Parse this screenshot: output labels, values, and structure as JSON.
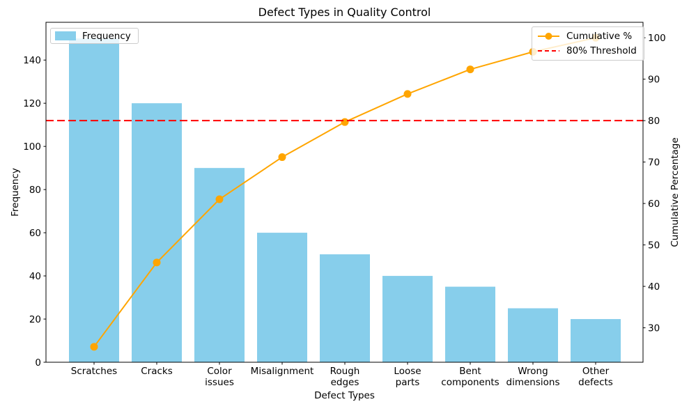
{
  "chart_data": {
    "type": "bar",
    "subtype": "pareto",
    "title": "Defect Types in Quality Control",
    "xlabel": "Defect Types",
    "grid": false,
    "background": "#FFFFFF",
    "categories": [
      "Scratches",
      "Cracks",
      "Color issues",
      "Misalignment",
      "Rough edges",
      "Loose parts",
      "Bent components",
      "Wrong dimensions",
      "Other defects"
    ],
    "category_tick_labels": [
      "Scratches",
      "Cracks",
      "Color\nissues",
      "Misalignment",
      "Rough\nedges",
      "Loose\nparts",
      "Bent\ncomponents",
      "Wrong\ndimensions",
      "Other\ndefects"
    ],
    "series": [
      {
        "name": "Frequency",
        "type": "bar",
        "axis": "left",
        "color": "#87CEEB",
        "values": [
          150,
          120,
          90,
          60,
          50,
          40,
          35,
          25,
          20
        ]
      },
      {
        "name": "Cumulative %",
        "type": "line",
        "axis": "right",
        "color": "#FFA500",
        "marker": "circle",
        "values": [
          25.42,
          45.76,
          61.02,
          71.19,
          79.66,
          86.44,
          92.37,
          96.61,
          100.0
        ]
      }
    ],
    "threshold_line": {
      "label": "80% Threshold",
      "value": 80,
      "axis": "right",
      "color": "#FF0000",
      "style": "dashed"
    },
    "left_axis": {
      "label": "Frequency",
      "ticks": [
        0,
        20,
        40,
        60,
        80,
        100,
        120,
        140
      ],
      "range": [
        0,
        157.5
      ]
    },
    "right_axis": {
      "label": "Cumulative Percentage",
      "ticks": [
        30,
        40,
        50,
        60,
        70,
        80,
        90,
        100
      ],
      "range": [
        21.69,
        103.73
      ]
    },
    "legend_left": {
      "items": [
        {
          "label": "Frequency",
          "swatch": "#87CEEB"
        }
      ]
    },
    "legend_right": {
      "items": [
        {
          "label": "Cumulative %",
          "color": "#FFA500",
          "style": "line-marker"
        },
        {
          "label": "80% Threshold",
          "color": "#FF0000",
          "style": "dashed"
        }
      ]
    },
    "axis_color": "#000000",
    "text_color": "#000000"
  }
}
